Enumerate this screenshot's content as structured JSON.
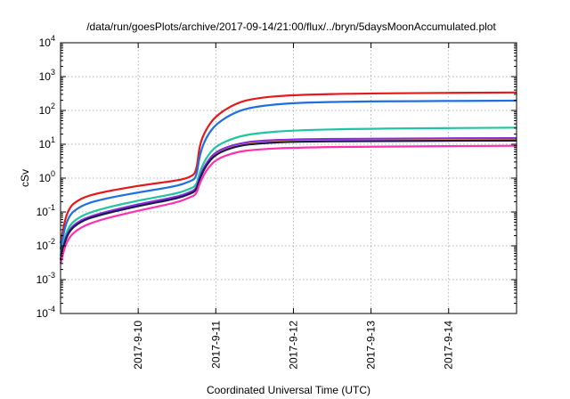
{
  "chart_data": {
    "type": "line",
    "title": "/data/run/goesPlots/archive/2017-09-14/21:00/flux/../bryn/5daysMoonAccumulated.plot",
    "xlabel": "Coordinated Universal Time (UTC)",
    "ylabel": "cSv",
    "x_scale": "time",
    "y_scale": "log",
    "xlim": [
      "2017-09-09T00:00",
      "2017-09-14T21:00"
    ],
    "ylim": [
      0.0001,
      10000
    ],
    "x_ticks": [
      "2017-9-10",
      "2017-9-11",
      "2017-9-12",
      "2017-9-13",
      "2017-9-14"
    ],
    "y_ticks": [
      {
        "value": 0.0001,
        "base": "10",
        "exp": "-4"
      },
      {
        "value": 0.001,
        "base": "10",
        "exp": "-3"
      },
      {
        "value": 0.01,
        "base": "10",
        "exp": "-2"
      },
      {
        "value": 0.1,
        "base": "10",
        "exp": "-1"
      },
      {
        "value": 1,
        "base": "10",
        "exp": "0"
      },
      {
        "value": 10,
        "base": "10",
        "exp": "1"
      },
      {
        "value": 100,
        "base": "10",
        "exp": "2"
      },
      {
        "value": 1000,
        "base": "10",
        "exp": "3"
      },
      {
        "value": 10000,
        "base": "10",
        "exp": "4"
      }
    ],
    "grid": true,
    "series": [
      {
        "color": "#e31a1c",
        "values": [
          [
            "2017-09-09T00:00",
            0.012
          ],
          [
            "2017-09-09T02:00",
            0.12
          ],
          [
            "2017-09-09T06:00",
            0.25
          ],
          [
            "2017-09-09T12:00",
            0.37
          ],
          [
            "2017-09-10T00:00",
            0.6
          ],
          [
            "2017-09-10T12:00",
            0.85
          ],
          [
            "2017-09-10T16:00",
            1.05
          ],
          [
            "2017-09-10T18:00",
            1.5
          ],
          [
            "2017-09-10T19:00",
            10
          ],
          [
            "2017-09-10T21:00",
            28
          ],
          [
            "2017-09-11T00:00",
            70
          ],
          [
            "2017-09-11T06:00",
            160
          ],
          [
            "2017-09-11T12:00",
            230
          ],
          [
            "2017-09-12T00:00",
            290
          ],
          [
            "2017-09-13T00:00",
            320
          ],
          [
            "2017-09-14T21:00",
            340
          ]
        ]
      },
      {
        "color": "#1f6fe0",
        "values": [
          [
            "2017-09-09T00:00",
            0.008
          ],
          [
            "2017-09-09T02:00",
            0.07
          ],
          [
            "2017-09-09T06:00",
            0.15
          ],
          [
            "2017-09-09T12:00",
            0.23
          ],
          [
            "2017-09-10T00:00",
            0.38
          ],
          [
            "2017-09-10T12:00",
            0.58
          ],
          [
            "2017-09-10T16:00",
            0.8
          ],
          [
            "2017-09-10T18:00",
            1.0
          ],
          [
            "2017-09-10T19:00",
            5
          ],
          [
            "2017-09-10T21:00",
            16
          ],
          [
            "2017-09-11T00:00",
            40
          ],
          [
            "2017-09-11T06:00",
            90
          ],
          [
            "2017-09-11T12:00",
            130
          ],
          [
            "2017-09-12T00:00",
            170
          ],
          [
            "2017-09-13T00:00",
            185
          ],
          [
            "2017-09-14T21:00",
            195
          ]
        ]
      },
      {
        "color": "#20c4a0",
        "values": [
          [
            "2017-09-09T00:00",
            0.005
          ],
          [
            "2017-09-09T02:00",
            0.035
          ],
          [
            "2017-09-09T06:00",
            0.075
          ],
          [
            "2017-09-09T12:00",
            0.12
          ],
          [
            "2017-09-10T00:00",
            0.22
          ],
          [
            "2017-09-10T12:00",
            0.35
          ],
          [
            "2017-09-10T16:00",
            0.48
          ],
          [
            "2017-09-10T18:00",
            0.6
          ],
          [
            "2017-09-10T19:00",
            1.5
          ],
          [
            "2017-09-10T21:00",
            4
          ],
          [
            "2017-09-11T00:00",
            9
          ],
          [
            "2017-09-11T06:00",
            16
          ],
          [
            "2017-09-11T12:00",
            21
          ],
          [
            "2017-09-12T00:00",
            26
          ],
          [
            "2017-09-13T00:00",
            29
          ],
          [
            "2017-09-14T21:00",
            31
          ]
        ]
      },
      {
        "color": "#f5c400",
        "values": [
          [
            "2017-09-09T00:00",
            0.004
          ],
          [
            "2017-09-09T02:00",
            0.025
          ],
          [
            "2017-09-09T06:00",
            0.055
          ],
          [
            "2017-09-09T12:00",
            0.085
          ],
          [
            "2017-09-10T00:00",
            0.16
          ],
          [
            "2017-09-10T12:00",
            0.26
          ],
          [
            "2017-09-10T16:00",
            0.36
          ],
          [
            "2017-09-10T18:00",
            0.45
          ],
          [
            "2017-09-10T19:00",
            1.0
          ],
          [
            "2017-09-10T21:00",
            2.5
          ],
          [
            "2017-09-11T00:00",
            5.5
          ],
          [
            "2017-09-11T06:00",
            9
          ],
          [
            "2017-09-11T12:00",
            11
          ],
          [
            "2017-09-12T00:00",
            12.5
          ],
          [
            "2017-09-13T00:00",
            13
          ],
          [
            "2017-09-14T21:00",
            13.5
          ]
        ]
      },
      {
        "color": "#8a2be2",
        "values": [
          [
            "2017-09-09T00:00",
            0.004
          ],
          [
            "2017-09-09T02:00",
            0.027
          ],
          [
            "2017-09-09T06:00",
            0.058
          ],
          [
            "2017-09-09T12:00",
            0.09
          ],
          [
            "2017-09-10T00:00",
            0.17
          ],
          [
            "2017-09-10T12:00",
            0.28
          ],
          [
            "2017-09-10T16:00",
            0.38
          ],
          [
            "2017-09-10T18:00",
            0.48
          ],
          [
            "2017-09-10T19:00",
            1.1
          ],
          [
            "2017-09-10T21:00",
            2.8
          ],
          [
            "2017-09-11T00:00",
            6.2
          ],
          [
            "2017-09-11T06:00",
            10
          ],
          [
            "2017-09-11T12:00",
            12.5
          ],
          [
            "2017-09-12T00:00",
            14
          ],
          [
            "2017-09-13T00:00",
            14.8
          ],
          [
            "2017-09-14T21:00",
            15.2
          ]
        ]
      },
      {
        "color": "#1a1a50",
        "values": [
          [
            "2017-09-09T00:00",
            0.0038
          ],
          [
            "2017-09-09T02:00",
            0.024
          ],
          [
            "2017-09-09T06:00",
            0.052
          ],
          [
            "2017-09-09T12:00",
            0.082
          ],
          [
            "2017-09-10T00:00",
            0.15
          ],
          [
            "2017-09-10T12:00",
            0.25
          ],
          [
            "2017-09-10T16:00",
            0.34
          ],
          [
            "2017-09-10T18:00",
            0.43
          ],
          [
            "2017-09-10T19:00",
            0.95
          ],
          [
            "2017-09-10T21:00",
            2.4
          ],
          [
            "2017-09-11T00:00",
            5.2
          ],
          [
            "2017-09-11T06:00",
            8.6
          ],
          [
            "2017-09-11T12:00",
            10.5
          ],
          [
            "2017-09-12T00:00",
            12
          ],
          [
            "2017-09-13T00:00",
            12.5
          ],
          [
            "2017-09-14T21:00",
            12.8
          ]
        ]
      },
      {
        "color": "#ff2fb0",
        "values": [
          [
            "2017-09-09T00:00",
            0.003
          ],
          [
            "2017-09-09T02:00",
            0.016
          ],
          [
            "2017-09-09T06:00",
            0.035
          ],
          [
            "2017-09-09T12:00",
            0.058
          ],
          [
            "2017-09-10T00:00",
            0.11
          ],
          [
            "2017-09-10T12:00",
            0.19
          ],
          [
            "2017-09-10T16:00",
            0.27
          ],
          [
            "2017-09-10T18:00",
            0.33
          ],
          [
            "2017-09-10T19:00",
            0.7
          ],
          [
            "2017-09-10T21:00",
            1.7
          ],
          [
            "2017-09-11T00:00",
            3.6
          ],
          [
            "2017-09-11T06:00",
            5.8
          ],
          [
            "2017-09-11T12:00",
            7
          ],
          [
            "2017-09-12T00:00",
            8
          ],
          [
            "2017-09-13T00:00",
            8.6
          ],
          [
            "2017-09-14T21:00",
            9
          ]
        ]
      }
    ]
  }
}
